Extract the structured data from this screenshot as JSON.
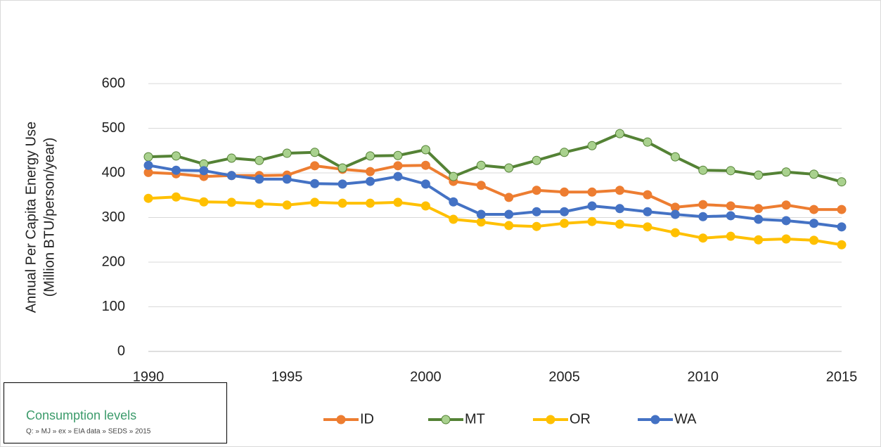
{
  "chart_data": {
    "type": "line",
    "y_label_lines": [
      "Annual Per Capita Energy Use",
      "(Million BTU/person/year)"
    ],
    "x": [
      1990,
      1991,
      1992,
      1993,
      1994,
      1995,
      1996,
      1997,
      1998,
      1999,
      2000,
      2001,
      2002,
      2003,
      2004,
      2005,
      2006,
      2007,
      2008,
      2009,
      2010,
      2011,
      2012,
      2013,
      2014,
      2015
    ],
    "series": [
      {
        "name": "ID",
        "color": "#ed7d31",
        "values": [
          401,
          398,
          392,
          394,
          394,
          395,
          416,
          408,
          403,
          416,
          417,
          381,
          372,
          345,
          361,
          357,
          357,
          361,
          351,
          323,
          329,
          326,
          320,
          328,
          318,
          318
        ]
      },
      {
        "name": "MT",
        "color": "#548235",
        "marker_color": "#a9d18e",
        "values": [
          436,
          438,
          420,
          433,
          428,
          444,
          446,
          411,
          438,
          439,
          452,
          392,
          417,
          411,
          428,
          446,
          461,
          488,
          469,
          436,
          406,
          405,
          395,
          402,
          397,
          380
        ]
      },
      {
        "name": "OR",
        "color": "#ffc000",
        "values": [
          343,
          346,
          335,
          334,
          331,
          328,
          334,
          332,
          332,
          334,
          326,
          296,
          290,
          282,
          280,
          287,
          291,
          285,
          279,
          266,
          254,
          258,
          250,
          252,
          249,
          239
        ]
      },
      {
        "name": "WA",
        "color": "#4472c4",
        "values": [
          417,
          406,
          405,
          394,
          386,
          386,
          376,
          375,
          381,
          392,
          375,
          335,
          307,
          307,
          313,
          313,
          326,
          320,
          313,
          307,
          302,
          304,
          296,
          293,
          287,
          279
        ]
      }
    ],
    "xlim": [
      1990,
      2015
    ],
    "xticks": [
      1990,
      1995,
      2000,
      2005,
      2010,
      2015
    ],
    "ylim": [
      0,
      600
    ],
    "yticks": [
      0,
      100,
      200,
      300,
      400,
      500,
      600
    ],
    "grid": true,
    "legend": "bottom"
  },
  "source_box": {
    "title": "Consumption levels",
    "path": "Q: » MJ » ex » EIA data » SEDS » 2015"
  }
}
